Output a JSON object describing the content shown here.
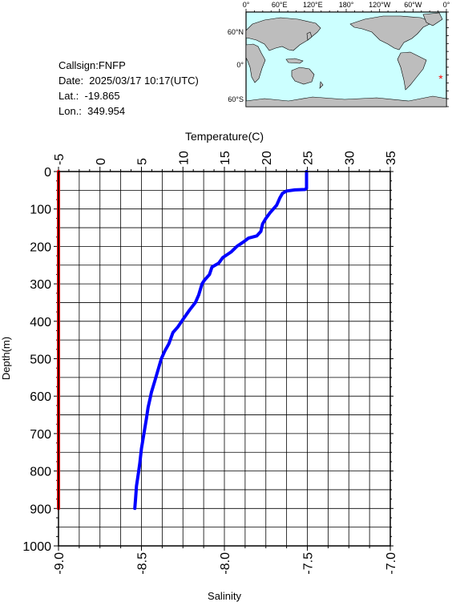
{
  "info": {
    "callsign": "Callsign:FNFP",
    "date": "Date:  2025/03/17 10:17(UTC)",
    "lat": "Lat.:  -19.865",
    "lon": "Lon.:  349.954"
  },
  "map": {
    "lon_labels": [
      "0°",
      "60°E",
      "120°E",
      "180°",
      "120°W",
      "60°W",
      "0°"
    ],
    "lat_labels": [
      "60°N",
      "0°",
      "60°S"
    ],
    "marker_symbol": "*",
    "colors": {
      "ocean": "#ccffff",
      "land": "#bdbdbd",
      "marker": "#ff0000"
    }
  },
  "chart_data": {
    "type": "line",
    "top_axis_label": "Temperature(C)",
    "bottom_axis_label": "Salinity",
    "ylabel": "Depth(m)",
    "temperature_range": [
      -5,
      35
    ],
    "temperature_ticks": [
      "-5",
      "0",
      "5",
      "10",
      "15",
      "20",
      "25",
      "30",
      "35"
    ],
    "salinity_range": [
      -9.0,
      -7.0
    ],
    "salinity_ticks": [
      "-9.0",
      "-8.5",
      "-8.0",
      "-7.5",
      "-7.0"
    ],
    "depth_range": [
      0,
      1000
    ],
    "depth_ticks": [
      "0",
      "100",
      "200",
      "300",
      "400",
      "500",
      "600",
      "700",
      "800",
      "900",
      "1000"
    ],
    "grid": true,
    "series": [
      {
        "axis": "temperature",
        "color": "#0000ff",
        "points": [
          [
            24.9,
            0
          ],
          [
            24.9,
            45
          ],
          [
            24.7,
            48
          ],
          [
            23.5,
            49
          ],
          [
            22.5,
            52
          ],
          [
            22.0,
            58
          ],
          [
            21.7,
            70
          ],
          [
            21.3,
            90
          ],
          [
            20.5,
            110
          ],
          [
            20.0,
            125
          ],
          [
            19.6,
            140
          ],
          [
            19.4,
            160
          ],
          [
            18.9,
            172
          ],
          [
            17.9,
            178
          ],
          [
            17.3,
            188
          ],
          [
            16.5,
            200
          ],
          [
            15.8,
            215
          ],
          [
            14.8,
            230
          ],
          [
            14.3,
            245
          ],
          [
            13.5,
            255
          ],
          [
            13.2,
            275
          ],
          [
            12.6,
            290
          ],
          [
            12.3,
            300
          ],
          [
            11.9,
            330
          ],
          [
            11.5,
            350
          ],
          [
            10.8,
            370
          ],
          [
            10.0,
            395
          ],
          [
            9.4,
            415
          ],
          [
            8.8,
            430
          ],
          [
            8.3,
            460
          ],
          [
            7.8,
            480
          ],
          [
            7.4,
            500
          ],
          [
            7.0,
            530
          ],
          [
            6.6,
            560
          ],
          [
            6.2,
            590
          ],
          [
            6.0,
            610
          ],
          [
            5.8,
            630
          ],
          [
            5.6,
            660
          ],
          [
            5.3,
            700
          ],
          [
            5.0,
            740
          ],
          [
            4.8,
            780
          ],
          [
            4.6,
            810
          ],
          [
            4.4,
            840
          ],
          [
            4.3,
            870
          ],
          [
            4.2,
            900
          ]
        ]
      },
      {
        "axis": "salinity",
        "color": "#ff0000",
        "points": [
          [
            -9.0,
            0
          ],
          [
            -9.0,
            900
          ]
        ]
      }
    ]
  }
}
